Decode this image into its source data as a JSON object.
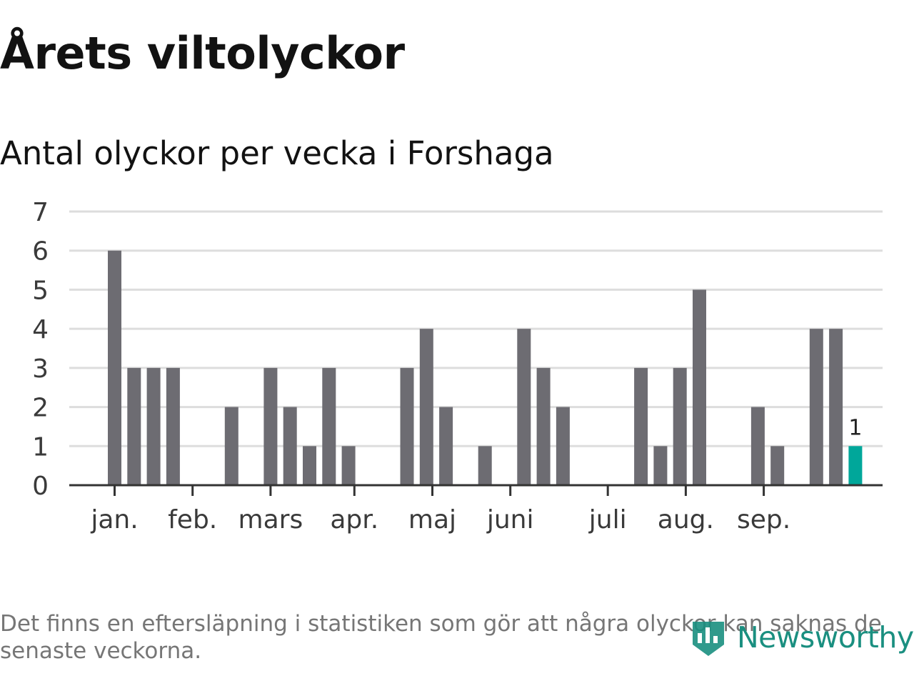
{
  "header": {
    "title": "Årets viltolyckor",
    "subtitle": "Antal olyckor per vecka i Forshaga"
  },
  "footer": {
    "note": "Det finns en eftersläpning i statistiken som gör att några olyckor kan saknas de senaste veckorna.",
    "brand": "Newsworthy"
  },
  "colors": {
    "bar": "#6d6c72",
    "highlight": "#00a79a",
    "grid": "#dddddd",
    "axis": "#333333",
    "brand": "#1a8f80"
  },
  "chart_data": {
    "type": "bar",
    "ylim": [
      0,
      7
    ],
    "yticks": [
      0,
      1,
      2,
      3,
      4,
      5,
      6,
      7
    ],
    "grid": true,
    "x": [
      1,
      2,
      3,
      4,
      5,
      6,
      7,
      8,
      9,
      10,
      11,
      12,
      13,
      14,
      15,
      16,
      17,
      18,
      19,
      20,
      21,
      22,
      23,
      24,
      25,
      26,
      27,
      28,
      29,
      30,
      31,
      32,
      33,
      34,
      35,
      36,
      37,
      38,
      39
    ],
    "values": [
      6,
      3,
      3,
      3,
      0,
      0,
      2,
      0,
      3,
      2,
      1,
      3,
      1,
      0,
      0,
      3,
      4,
      2,
      0,
      1,
      0,
      4,
      3,
      2,
      0,
      0,
      0,
      3,
      1,
      3,
      5,
      0,
      0,
      2,
      1,
      0,
      4,
      4,
      1
    ],
    "highlight_index": 38,
    "highlight_label": "1",
    "month_ticks": [
      {
        "label": "jan.",
        "x": 1
      },
      {
        "label": "feb.",
        "x": 5
      },
      {
        "label": "mars",
        "x": 9
      },
      {
        "label": "apr.",
        "x": 13.3
      },
      {
        "label": "maj",
        "x": 17.3
      },
      {
        "label": "juni",
        "x": 21.3
      },
      {
        "label": "juli",
        "x": 26.3
      },
      {
        "label": "aug.",
        "x": 30.3
      },
      {
        "label": "sep.",
        "x": 34.3
      }
    ]
  }
}
